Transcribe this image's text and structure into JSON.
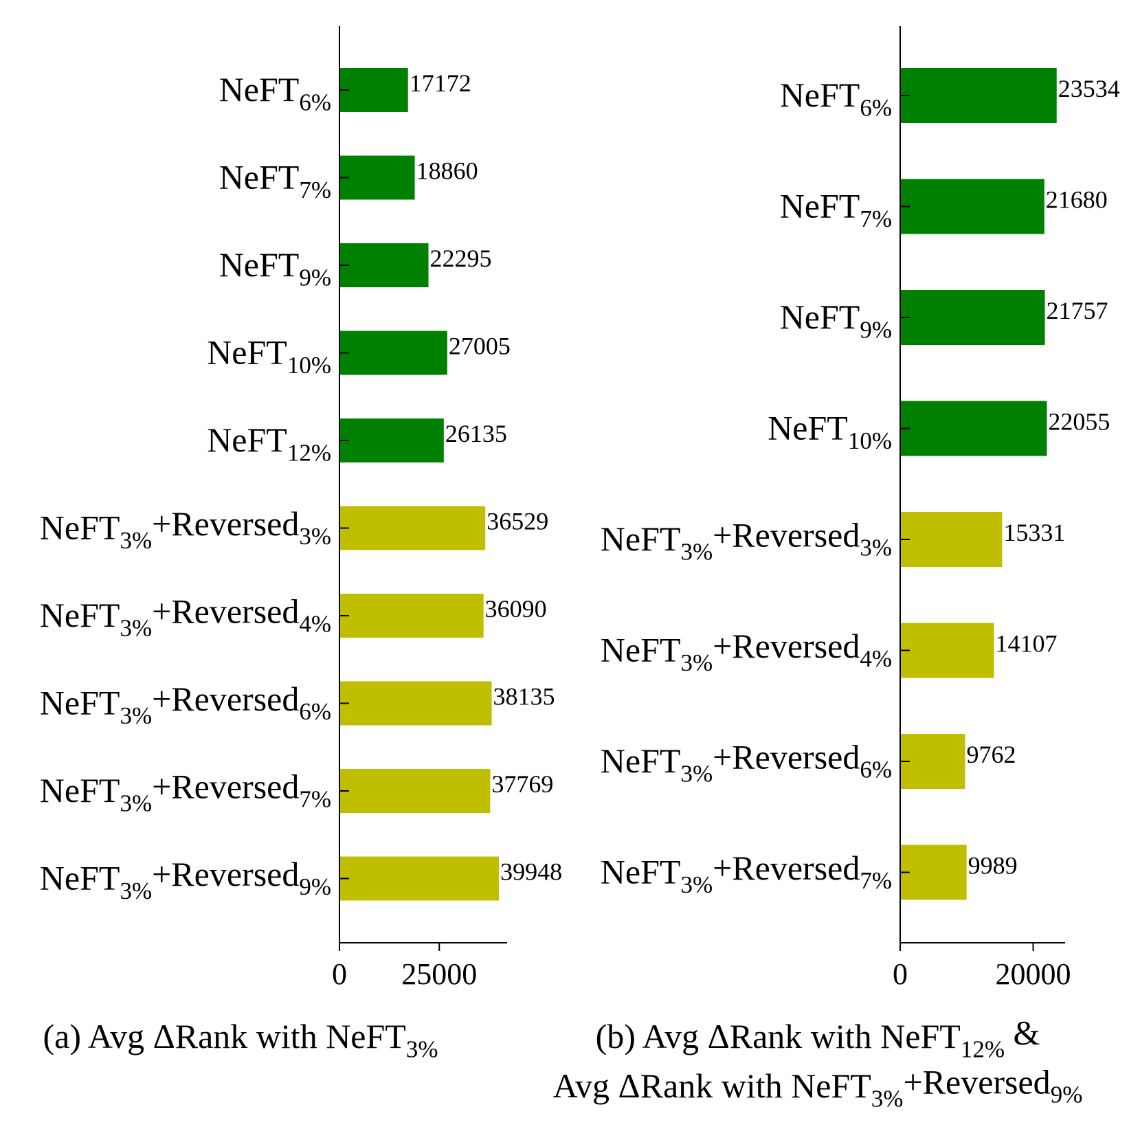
{
  "chart_data": [
    {
      "type": "bar",
      "orientation": "horizontal",
      "caption": {
        "lines": [
          [
            {
              "text": "(a) Avg ΔRank with NeFT"
            },
            {
              "text": "3%",
              "sub": true
            }
          ]
        ]
      },
      "categories": [
        [
          {
            "text": "NeFT"
          },
          {
            "text": "6%",
            "sub": true
          }
        ],
        [
          {
            "text": "NeFT"
          },
          {
            "text": "7%",
            "sub": true
          }
        ],
        [
          {
            "text": "NeFT"
          },
          {
            "text": "9%",
            "sub": true
          }
        ],
        [
          {
            "text": "NeFT"
          },
          {
            "text": "10%",
            "sub": true
          }
        ],
        [
          {
            "text": "NeFT"
          },
          {
            "text": "12%",
            "sub": true
          }
        ],
        [
          {
            "text": "NeFT"
          },
          {
            "text": "3%",
            "sub": true
          },
          {
            "text": "+Reversed"
          },
          {
            "text": "3%",
            "sub": true
          }
        ],
        [
          {
            "text": "NeFT"
          },
          {
            "text": "3%",
            "sub": true
          },
          {
            "text": "+Reversed"
          },
          {
            "text": "4%",
            "sub": true
          }
        ],
        [
          {
            "text": "NeFT"
          },
          {
            "text": "3%",
            "sub": true
          },
          {
            "text": "+Reversed"
          },
          {
            "text": "6%",
            "sub": true
          }
        ],
        [
          {
            "text": "NeFT"
          },
          {
            "text": "3%",
            "sub": true
          },
          {
            "text": "+Reversed"
          },
          {
            "text": "7%",
            "sub": true
          }
        ],
        [
          {
            "text": "NeFT"
          },
          {
            "text": "3%",
            "sub": true
          },
          {
            "text": "+Reversed"
          },
          {
            "text": "9%",
            "sub": true
          }
        ]
      ],
      "values": [
        17172,
        18860,
        22295,
        27005,
        26135,
        36529,
        36090,
        38135,
        37769,
        39948
      ],
      "colors": [
        "#008000",
        "#008000",
        "#008000",
        "#008000",
        "#008000",
        "#bfbf00",
        "#bfbf00",
        "#bfbf00",
        "#bfbf00",
        "#bfbf00"
      ],
      "data_labels": [
        "17172",
        "18860",
        "22295",
        "27005",
        "26135",
        "36529",
        "36090",
        "38135",
        "37769",
        "39948"
      ],
      "xticks": [
        0,
        25000
      ],
      "xtick_labels": [
        "0",
        "25000"
      ],
      "xlim": [
        0,
        42000
      ],
      "grid": false,
      "legend": "none"
    },
    {
      "type": "bar",
      "orientation": "horizontal",
      "caption": {
        "lines": [
          [
            {
              "text": "(b) Avg ΔRank with NeFT"
            },
            {
              "text": "12%",
              "sub": true
            },
            {
              "text": " &"
            }
          ],
          [
            {
              "text": "Avg ΔRank with NeFT"
            },
            {
              "text": "3%",
              "sub": true
            },
            {
              "text": "+Reversed"
            },
            {
              "text": "9%",
              "sub": true
            }
          ]
        ]
      },
      "categories": [
        [
          {
            "text": "NeFT"
          },
          {
            "text": "6%",
            "sub": true
          }
        ],
        [
          {
            "text": "NeFT"
          },
          {
            "text": "7%",
            "sub": true
          }
        ],
        [
          {
            "text": "NeFT"
          },
          {
            "text": "9%",
            "sub": true
          }
        ],
        [
          {
            "text": "NeFT"
          },
          {
            "text": "10%",
            "sub": true
          }
        ],
        [
          {
            "text": "NeFT"
          },
          {
            "text": "3%",
            "sub": true
          },
          {
            "text": "+Reversed"
          },
          {
            "text": "3%",
            "sub": true
          }
        ],
        [
          {
            "text": "NeFT"
          },
          {
            "text": "3%",
            "sub": true
          },
          {
            "text": "+Reversed"
          },
          {
            "text": "4%",
            "sub": true
          }
        ],
        [
          {
            "text": "NeFT"
          },
          {
            "text": "3%",
            "sub": true
          },
          {
            "text": "+Reversed"
          },
          {
            "text": "6%",
            "sub": true
          }
        ],
        [
          {
            "text": "NeFT"
          },
          {
            "text": "3%",
            "sub": true
          },
          {
            "text": "+Reversed"
          },
          {
            "text": "7%",
            "sub": true
          }
        ]
      ],
      "values": [
        23534,
        21680,
        21757,
        22055,
        15331,
        14107,
        9762,
        9989
      ],
      "colors": [
        "#008000",
        "#008000",
        "#008000",
        "#008000",
        "#bfbf00",
        "#bfbf00",
        "#bfbf00",
        "#bfbf00"
      ],
      "data_labels": [
        "23534",
        "21680",
        "21757",
        "22055",
        "15331",
        "14107",
        "9762",
        "9989"
      ],
      "xticks": [
        0,
        20000
      ],
      "xtick_labels": [
        "0",
        "20000"
      ],
      "xlim": [
        0,
        24800
      ],
      "grid": false,
      "legend": "none"
    }
  ]
}
